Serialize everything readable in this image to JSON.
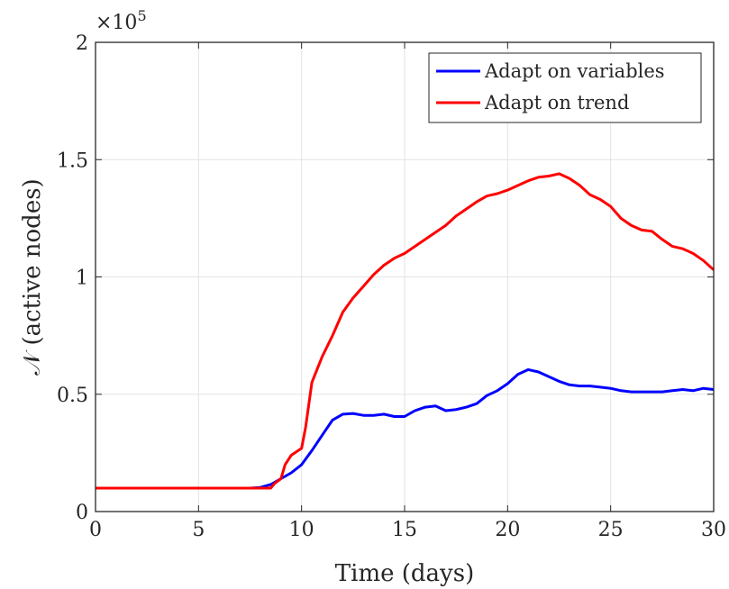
{
  "chart_data": {
    "type": "line",
    "xlabel": "Time (days)",
    "ylabel": "𝒩 (active nodes)",
    "xlim": [
      0,
      30
    ],
    "ylim": [
      0,
      200000
    ],
    "xticks": [
      0,
      5,
      10,
      15,
      20,
      25,
      30
    ],
    "yticks": [
      0,
      50000,
      100000,
      150000,
      200000
    ],
    "xtick_labels": [
      "0",
      "5",
      "10",
      "15",
      "20",
      "25",
      "30"
    ],
    "ytick_labels": [
      "0",
      "0.5",
      "1",
      "1.5",
      "2"
    ],
    "y_exponent_label": "×10",
    "y_exponent_power": "5",
    "grid": true,
    "legend_position": "top-right",
    "series": [
      {
        "name": "Adapt on variables",
        "color": "#0000ff",
        "x": [
          0,
          7.5,
          8,
          8.5,
          9,
          9.5,
          10,
          10.5,
          11,
          11.5,
          12,
          12.5,
          13,
          13.5,
          14,
          14.5,
          15,
          15.5,
          16,
          16.5,
          17,
          17.5,
          18,
          18.5,
          19,
          19.5,
          20,
          20.5,
          21,
          21.5,
          22,
          22.5,
          23,
          23.5,
          24,
          24.5,
          25,
          25.5,
          26,
          26.5,
          27,
          27.5,
          28,
          28.5,
          29,
          29.5,
          30
        ],
        "y": [
          10000,
          10000,
          10300,
          11500,
          14000,
          16500,
          20000,
          26000,
          32500,
          39000,
          41500,
          41800,
          41000,
          41000,
          41500,
          40500,
          40500,
          43000,
          44500,
          45000,
          43000,
          43500,
          44500,
          46000,
          49500,
          51500,
          54500,
          58500,
          60500,
          59500,
          57500,
          55500,
          54000,
          53500,
          53500,
          53000,
          52500,
          51500,
          51000,
          51000,
          51000,
          51000,
          51500,
          52000,
          51500,
          52500,
          52000
        ]
      },
      {
        "name": "Adapt on trend",
        "color": "#ff0000",
        "x": [
          0,
          8.5,
          8.7,
          9,
          9.2,
          9.5,
          10,
          10.2,
          10.5,
          11,
          11.5,
          12,
          12.5,
          13,
          13.5,
          14,
          14.5,
          15,
          15.5,
          16,
          16.5,
          17,
          17.5,
          18,
          18.5,
          19,
          19.5,
          20,
          20.5,
          21,
          21.5,
          22,
          22.5,
          23,
          23.5,
          24,
          24.5,
          25,
          25.5,
          26,
          26.5,
          27,
          27.5,
          28,
          28.5,
          29,
          29.5,
          30
        ],
        "y": [
          10000,
          10000,
          12000,
          14000,
          20000,
          24000,
          27000,
          36000,
          55000,
          66000,
          75000,
          85000,
          91000,
          96000,
          101000,
          105000,
          108000,
          110000,
          113000,
          116000,
          119000,
          122000,
          126000,
          129000,
          132000,
          134500,
          135500,
          137000,
          139000,
          141000,
          142500,
          143000,
          144000,
          142000,
          139000,
          135000,
          133000,
          130000,
          125000,
          122000,
          120000,
          119500,
          116000,
          113000,
          112000,
          110000,
          107000,
          103000
        ]
      }
    ]
  }
}
